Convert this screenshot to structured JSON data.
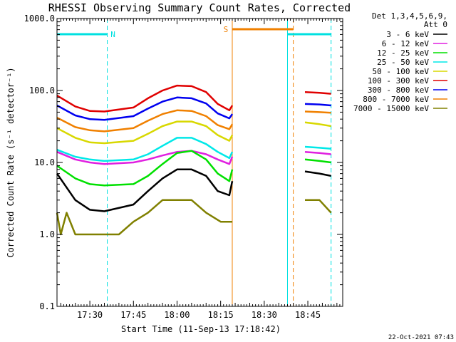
{
  "chart_data": {
    "type": "line",
    "title": "RHESSI Observing Summary Count Rates, Corrected",
    "xlabel": "Start Time (11-Sep-13 17:18:42)",
    "ylabel": "Corrected Count Rate (s⁻¹ detector⁻¹)",
    "x_ticks": [
      "17:30",
      "17:45",
      "18:00",
      "18:15",
      "18:30",
      "18:45"
    ],
    "y_ticks": [
      "0.1",
      "1.0",
      "10.0",
      "100.0",
      "1000.0"
    ],
    "x_range": [
      "17:18:42",
      "18:57:00"
    ],
    "y_range": [
      0.1,
      1000
    ],
    "y_scale": "log",
    "legend_header": [
      "Det 1,3,4,5,6,9,",
      "Att 0"
    ],
    "legend_position": "right",
    "series": [
      {
        "name": "3 - 6 keV",
        "color": "#000000",
        "points": [
          [
            "17:18:42",
            7
          ],
          [
            "17:25",
            3
          ],
          [
            "17:30",
            2.2
          ],
          [
            "17:35",
            2.1
          ],
          [
            "17:45",
            2.6
          ],
          [
            "17:50",
            4
          ],
          [
            "17:55",
            6
          ],
          [
            "18:00",
            8
          ],
          [
            "18:05",
            8
          ],
          [
            "18:10",
            6.5
          ],
          [
            "18:14",
            4
          ],
          [
            "18:18",
            3.5
          ],
          [
            "18:19",
            5.5
          ]
        ],
        "points_after_gap": [
          [
            "18:44",
            7.5
          ],
          [
            "18:49",
            7
          ],
          [
            "18:53",
            6.5
          ]
        ]
      },
      {
        "name": "6 - 12 keV",
        "color": "#e020e0",
        "points": [
          [
            "17:18:42",
            14
          ],
          [
            "17:25",
            11
          ],
          [
            "17:30",
            10
          ],
          [
            "17:35",
            9.5
          ],
          [
            "17:45",
            10
          ],
          [
            "17:50",
            11
          ],
          [
            "17:55",
            12.5
          ],
          [
            "18:00",
            14
          ],
          [
            "18:05",
            14.5
          ],
          [
            "18:10",
            13
          ],
          [
            "18:14",
            11
          ],
          [
            "18:18",
            9.5
          ],
          [
            "18:19",
            12
          ]
        ],
        "points_after_gap": [
          [
            "18:44",
            14
          ],
          [
            "18:49",
            13.5
          ],
          [
            "18:53",
            13
          ]
        ]
      },
      {
        "name": "12 - 25 keV",
        "color": "#00e000",
        "points": [
          [
            "17:18:42",
            9
          ],
          [
            "17:25",
            6
          ],
          [
            "17:30",
            5
          ],
          [
            "17:35",
            4.8
          ],
          [
            "17:45",
            5
          ],
          [
            "17:50",
            6.5
          ],
          [
            "17:55",
            9.5
          ],
          [
            "18:00",
            13.5
          ],
          [
            "18:05",
            14.5
          ],
          [
            "18:10",
            11
          ],
          [
            "18:14",
            7
          ],
          [
            "18:18",
            5.5
          ],
          [
            "18:19",
            8
          ]
        ],
        "points_after_gap": [
          [
            "18:44",
            11
          ],
          [
            "18:49",
            10.5
          ],
          [
            "18:53",
            10
          ]
        ]
      },
      {
        "name": "25 - 50 keV",
        "color": "#00e8e8",
        "points": [
          [
            "17:18:42",
            15
          ],
          [
            "17:25",
            12
          ],
          [
            "17:30",
            11
          ],
          [
            "17:35",
            10.5
          ],
          [
            "17:45",
            11
          ],
          [
            "17:50",
            13
          ],
          [
            "17:55",
            17
          ],
          [
            "18:00",
            22
          ],
          [
            "18:05",
            22
          ],
          [
            "18:10",
            18
          ],
          [
            "18:14",
            14
          ],
          [
            "18:18",
            11.5
          ],
          [
            "18:19",
            14
          ]
        ],
        "points_after_gap": [
          [
            "18:44",
            16.5
          ],
          [
            "18:49",
            16
          ],
          [
            "18:53",
            15.5
          ]
        ]
      },
      {
        "name": "50 - 100 keV",
        "color": "#d8d800",
        "points": [
          [
            "17:18:42",
            30
          ],
          [
            "17:25",
            22
          ],
          [
            "17:30",
            19
          ],
          [
            "17:35",
            18.5
          ],
          [
            "17:45",
            20
          ],
          [
            "17:50",
            25
          ],
          [
            "17:55",
            32
          ],
          [
            "18:00",
            37
          ],
          [
            "18:05",
            37
          ],
          [
            "18:10",
            32
          ],
          [
            "18:14",
            24
          ],
          [
            "18:18",
            20
          ],
          [
            "18:19",
            24
          ]
        ],
        "points_after_gap": [
          [
            "18:44",
            36
          ],
          [
            "18:49",
            34
          ],
          [
            "18:53",
            32
          ]
        ]
      },
      {
        "name": "100 - 300 keV",
        "color": "#e00000",
        "points": [
          [
            "17:18:42",
            85
          ],
          [
            "17:25",
            60
          ],
          [
            "17:30",
            52
          ],
          [
            "17:35",
            51
          ],
          [
            "17:45",
            58
          ],
          [
            "17:50",
            78
          ],
          [
            "17:55",
            100
          ],
          [
            "18:00",
            117
          ],
          [
            "18:05",
            115
          ],
          [
            "18:10",
            95
          ],
          [
            "18:14",
            65
          ],
          [
            "18:18",
            53
          ],
          [
            "18:19",
            62
          ]
        ],
        "points_after_gap": [
          [
            "18:44",
            95
          ],
          [
            "18:49",
            93
          ],
          [
            "18:53",
            90
          ]
        ]
      },
      {
        "name": "300 - 800 keV",
        "color": "#0000f0",
        "points": [
          [
            "17:18:42",
            62
          ],
          [
            "17:25",
            45
          ],
          [
            "17:30",
            40
          ],
          [
            "17:35",
            39
          ],
          [
            "17:45",
            44
          ],
          [
            "17:50",
            56
          ],
          [
            "17:55",
            70
          ],
          [
            "18:00",
            80
          ],
          [
            "18:05",
            78
          ],
          [
            "18:10",
            66
          ],
          [
            "18:14",
            48
          ],
          [
            "18:18",
            41
          ],
          [
            "18:19",
            47
          ]
        ],
        "points_after_gap": [
          [
            "18:44",
            65
          ],
          [
            "18:49",
            64
          ],
          [
            "18:53",
            62
          ]
        ]
      },
      {
        "name": "800 - 7000 keV",
        "color": "#f08000",
        "points": [
          [
            "17:18:42",
            42
          ],
          [
            "17:25",
            31
          ],
          [
            "17:30",
            28
          ],
          [
            "17:35",
            27
          ],
          [
            "17:45",
            30
          ],
          [
            "17:50",
            38
          ],
          [
            "17:55",
            47
          ],
          [
            "18:00",
            53
          ],
          [
            "18:05",
            52
          ],
          [
            "18:10",
            44
          ],
          [
            "18:14",
            33
          ],
          [
            "18:18",
            29
          ],
          [
            "18:19",
            34
          ]
        ],
        "points_after_gap": [
          [
            "18:44",
            51
          ],
          [
            "18:49",
            50
          ],
          [
            "18:53",
            49
          ]
        ]
      },
      {
        "name": "7000 - 15000 keV",
        "color": "#808000",
        "points": [
          [
            "17:18:42",
            2
          ],
          [
            "17:20",
            1
          ],
          [
            "17:22",
            2
          ],
          [
            "17:25",
            1
          ],
          [
            "17:30",
            1
          ],
          [
            "17:40",
            1
          ],
          [
            "17:45",
            1.5
          ],
          [
            "17:50",
            2
          ],
          [
            "17:55",
            3
          ],
          [
            "18:00",
            3
          ],
          [
            "18:05",
            3
          ],
          [
            "18:10",
            2
          ],
          [
            "18:15",
            1.5
          ],
          [
            "18:19",
            1.5
          ]
        ],
        "points_after_gap": [
          [
            "18:44",
            3
          ],
          [
            "18:49",
            3
          ],
          [
            "18:53",
            2
          ]
        ]
      }
    ],
    "flags": [
      {
        "label": "N",
        "color": "#00e0e0",
        "from": "17:18:42",
        "to": "17:36:00"
      },
      {
        "label": "S",
        "color": "#f08000",
        "from": "18:19:00",
        "to": "18:40:00"
      },
      {
        "label": "",
        "color": "#00e0e0",
        "from": "18:38:00",
        "to": "18:53:00"
      }
    ],
    "vlines": [
      {
        "time": "17:18:42",
        "color": "#00e0e0",
        "style": "solid"
      },
      {
        "time": "17:36:00",
        "color": "#00e0e0",
        "style": "dashed"
      },
      {
        "time": "18:19:00",
        "color": "#f08000",
        "style": "solid"
      },
      {
        "time": "18:38:00",
        "color": "#00e0e0",
        "style": "solid"
      },
      {
        "time": "18:40:00",
        "color": "#f08000",
        "style": "dashed"
      },
      {
        "time": "18:53:00",
        "color": "#00e0e0",
        "style": "dashed"
      }
    ]
  },
  "footer_timestamp": "22-Oct-2021 07:43"
}
